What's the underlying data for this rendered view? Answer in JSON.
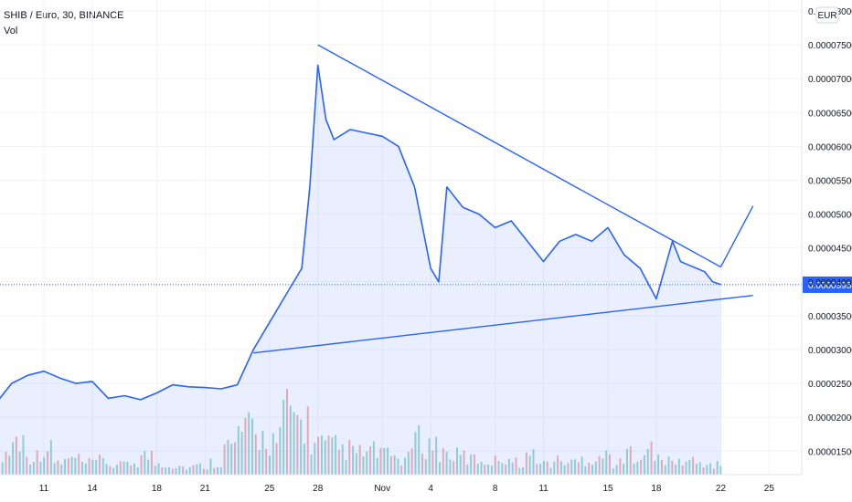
{
  "header": {
    "title": "SHIB / Euro, 30, BINANCE",
    "volume_label": "Vol"
  },
  "currency_badge": "EUR",
  "colors": {
    "line": "#2962ff",
    "fill": "#2962ff",
    "last_price_bg": "#2962ff",
    "volume_up": "#26a69a",
    "volume_down": "#ef5350",
    "grid": "#f0f3fa"
  },
  "chart_data": {
    "type": "area",
    "title": "SHIB / Euro, 30, BINANCE",
    "xlabel": "",
    "ylabel": "",
    "x_ticks": [
      "11",
      "14",
      "18",
      "21",
      "25",
      "28",
      "Nov",
      "4",
      "8",
      "11",
      "15",
      "18",
      "22",
      "25"
    ],
    "y_ticks": [
      "0.00008000",
      "0.00007500",
      "0.00007000",
      "0.00006500",
      "0.00006000",
      "0.00005500",
      "0.00005000",
      "0.00004500",
      "0.00004000",
      "0.00003500",
      "0.00003000",
      "0.00002500",
      "0.00002000",
      "0.00001500"
    ],
    "ylim": [
      1.37e-05,
      8e-05
    ],
    "last_price": "0.00003958",
    "series": [
      {
        "x": [
          "Oct 8",
          "Oct 9",
          "Oct 10",
          "Oct 11",
          "Oct 12",
          "Oct 13",
          "Oct 14",
          "Oct 15",
          "Oct 16",
          "Oct 17",
          "Oct 18",
          "Oct 19",
          "Oct 20",
          "Oct 21",
          "Oct 22",
          "Oct 23",
          "Oct 24",
          "Oct 25",
          "Oct 26",
          "Oct 27",
          "Oct 27 12:00",
          "Oct 28",
          "Oct 28 12:00",
          "Oct 29",
          "Oct 30",
          "Oct 31",
          "Nov 1",
          "Nov 2",
          "Nov 3",
          "Nov 4",
          "Nov 4 12:00",
          "Nov 5",
          "Nov 6",
          "Nov 7",
          "Nov 8",
          "Nov 9",
          "Nov 10",
          "Nov 11",
          "Nov 12",
          "Nov 13",
          "Nov 14",
          "Nov 15",
          "Nov 16",
          "Nov 17",
          "Nov 18",
          "Nov 19",
          "Nov 19 12:00",
          "Nov 20",
          "Nov 21",
          "Nov 21 12:00",
          "Nov 22"
        ],
        "values": [
          2.2e-05,
          2.5e-05,
          2.62e-05,
          2.68e-05,
          2.58e-05,
          2.5e-05,
          2.53e-05,
          2.28e-05,
          2.32e-05,
          2.26e-05,
          2.36e-05,
          2.48e-05,
          2.45e-05,
          2.44e-05,
          2.42e-05,
          2.48e-05,
          3e-05,
          3.4e-05,
          3.8e-05,
          4.2e-05,
          5.4e-05,
          7.2e-05,
          6.4e-05,
          6.1e-05,
          6.25e-05,
          6.2e-05,
          6.15e-05,
          6e-05,
          5.4e-05,
          4.2e-05,
          4e-05,
          5.4e-05,
          5.1e-05,
          5e-05,
          4.8e-05,
          4.9e-05,
          4.6e-05,
          4.3e-05,
          4.6e-05,
          4.7e-05,
          4.6e-05,
          4.8e-05,
          4.4e-05,
          4.2e-05,
          3.75e-05,
          4.6e-05,
          4.3e-05,
          4.25e-05,
          4.15e-05,
          4e-05,
          3.96e-05
        ]
      }
    ],
    "trendlines": [
      {
        "from": [
          "Oct 28",
          7.5e-05
        ],
        "to": [
          "Nov 22",
          4.22e-05
        ]
      },
      {
        "from": [
          "Oct 24",
          2.95e-05
        ],
        "to": [
          "Nov 24",
          3.8e-05
        ]
      },
      {
        "from": [
          "Nov 22",
          4.22e-05
        ],
        "to": [
          "Nov 24",
          5.12e-05
        ]
      }
    ],
    "volume": {
      "series_name": "Vol",
      "relative_values": [
        0.35,
        0.55,
        0.3,
        0.4,
        0.2,
        0.25,
        0.18,
        0.22,
        0.15,
        0.2,
        0.3,
        0.18,
        0.15,
        0.12,
        0.14,
        0.2,
        0.45,
        0.7,
        0.6,
        0.55,
        1.0,
        0.85,
        0.5,
        0.45,
        0.4,
        0.35,
        0.38,
        0.3,
        0.25,
        0.55,
        0.48,
        0.35,
        0.3,
        0.25,
        0.22,
        0.28,
        0.2,
        0.3,
        0.18,
        0.22,
        0.2,
        0.25,
        0.3,
        0.18,
        0.35,
        0.4,
        0.25,
        0.2,
        0.22,
        0.18,
        0.15
      ]
    }
  }
}
